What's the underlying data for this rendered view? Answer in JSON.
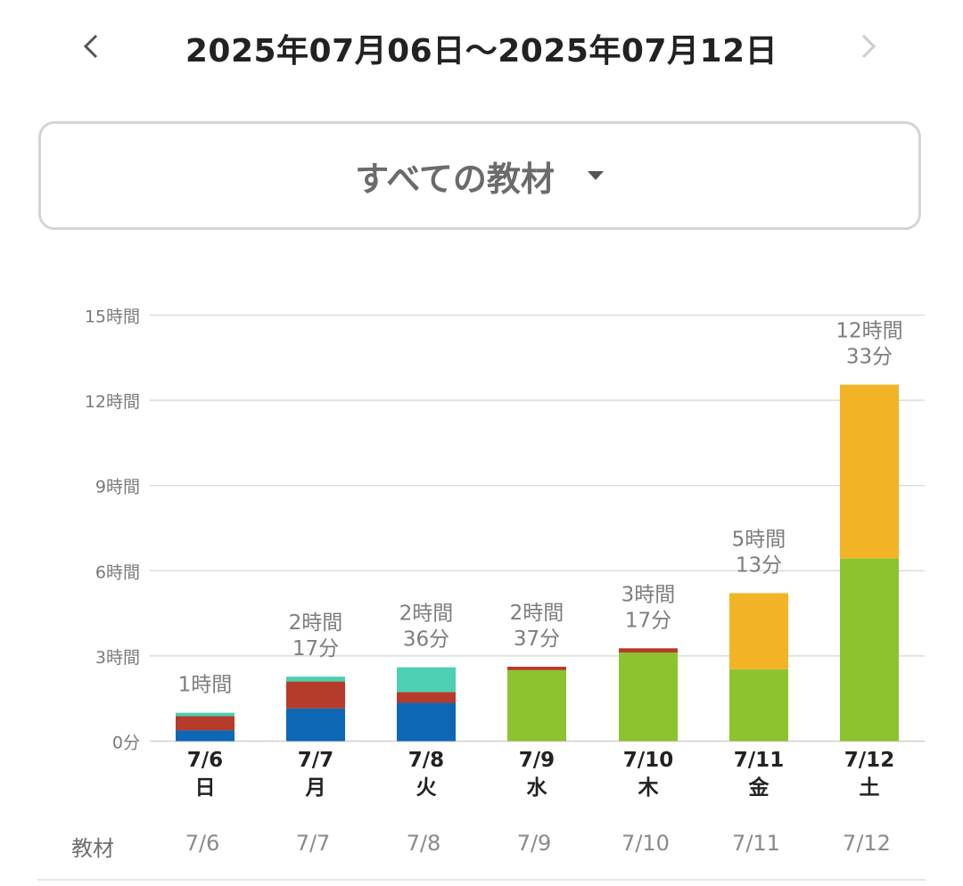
{
  "header": {
    "date_range": "2025年07月06日〜2025年07月12日",
    "prev_icon": "chevron-left-icon",
    "next_icon": "chevron-right-icon"
  },
  "material_select": {
    "label": "すべての教材",
    "icon": "caret-down-icon"
  },
  "chart_data": {
    "type": "bar",
    "stacked": true,
    "y_unit": "hours",
    "ylim": [
      0,
      15
    ],
    "y_ticks": [
      {
        "value": 0,
        "label": "0分"
      },
      {
        "value": 3,
        "label": "3時間"
      },
      {
        "value": 6,
        "label": "6時間"
      },
      {
        "value": 9,
        "label": "9時間"
      },
      {
        "value": 12,
        "label": "12時間"
      },
      {
        "value": 15,
        "label": "15時間"
      }
    ],
    "grid": true,
    "legend": "none",
    "categories": [
      {
        "date": "7/6",
        "weekday": "日"
      },
      {
        "date": "7/7",
        "weekday": "月"
      },
      {
        "date": "7/8",
        "weekday": "火"
      },
      {
        "date": "7/9",
        "weekday": "水"
      },
      {
        "date": "7/10",
        "weekday": "木"
      },
      {
        "date": "7/11",
        "weekday": "金"
      },
      {
        "date": "7/12",
        "weekday": "土"
      }
    ],
    "series": [
      {
        "color": "#0d67b5",
        "values": [
          0.38,
          1.15,
          1.35,
          0,
          0,
          0,
          0
        ]
      },
      {
        "color": "#8dc32f",
        "values": [
          0,
          0,
          0,
          2.5,
          3.12,
          2.53,
          6.43
        ]
      },
      {
        "color": "#b53b2b",
        "values": [
          0.5,
          0.95,
          0.38,
          0.12,
          0.15,
          0,
          0
        ]
      },
      {
        "color": "#4ccfb2",
        "values": [
          0.12,
          0.17,
          0.87,
          0,
          0,
          0,
          0
        ]
      },
      {
        "color": "#f2b426",
        "values": [
          0,
          0,
          0,
          0,
          0,
          2.68,
          6.12
        ]
      }
    ],
    "totals": [
      [
        "1時間"
      ],
      [
        "2時間",
        "17分"
      ],
      [
        "2時間",
        "36分"
      ],
      [
        "2時間",
        "37分"
      ],
      [
        "3時間",
        "17分"
      ],
      [
        "5時間",
        "13分"
      ],
      [
        "12時間",
        "33分"
      ]
    ]
  },
  "table": {
    "row_label": "教材",
    "dates": [
      "7/6",
      "7/7",
      "7/8",
      "7/9",
      "7/10",
      "7/11",
      "7/12"
    ]
  }
}
